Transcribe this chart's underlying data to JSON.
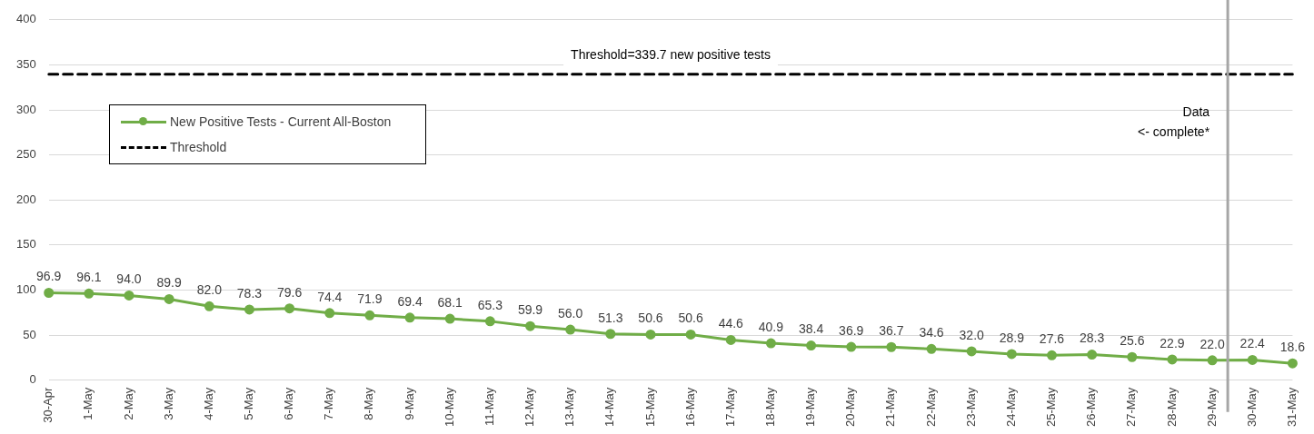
{
  "chart_data": {
    "type": "line",
    "categories": [
      "30-Apr",
      "1-May",
      "2-May",
      "3-May",
      "4-May",
      "5-May",
      "6-May",
      "7-May",
      "8-May",
      "9-May",
      "10-May",
      "11-May",
      "12-May",
      "13-May",
      "14-May",
      "15-May",
      "16-May",
      "17-May",
      "18-May",
      "19-May",
      "20-May",
      "21-May",
      "22-May",
      "23-May",
      "24-May",
      "25-May",
      "26-May",
      "27-May",
      "28-May",
      "29-May",
      "30-May",
      "31-May"
    ],
    "series": [
      {
        "name": "New Positive Tests - Current All-Boston",
        "color": "#70ad47",
        "marker": "circle",
        "line_style": "solid",
        "values": [
          96.9,
          96.1,
          94.0,
          89.9,
          82.0,
          78.3,
          79.6,
          74.4,
          71.9,
          69.4,
          68.1,
          65.3,
          59.9,
          56.0,
          51.3,
          50.6,
          50.6,
          44.6,
          40.9,
          38.4,
          36.9,
          36.7,
          34.6,
          32.0,
          28.9,
          27.6,
          28.3,
          25.6,
          22.9,
          22.0,
          22.4,
          18.6
        ],
        "value_labels": [
          "96.9",
          "96.1",
          "94.0",
          "89.9",
          "82.0",
          "78.3",
          "79.6",
          "74.4",
          "71.9",
          "69.4",
          "68.1",
          "65.3",
          "59.9",
          "56.0",
          "51.3",
          "50.6",
          "50.6",
          "44.6",
          "40.9",
          "38.4",
          "36.9",
          "36.7",
          "34.6",
          "32.0",
          "28.9",
          "27.6",
          "28.3",
          "25.6",
          "22.9",
          "22.0",
          "22.4",
          "18.6"
        ]
      },
      {
        "name": "Threshold",
        "color": "#000000",
        "marker": "none",
        "line_style": "dashed",
        "values": [
          339.7,
          339.7,
          339.7,
          339.7,
          339.7,
          339.7,
          339.7,
          339.7,
          339.7,
          339.7,
          339.7,
          339.7,
          339.7,
          339.7,
          339.7,
          339.7,
          339.7,
          339.7,
          339.7,
          339.7,
          339.7,
          339.7,
          339.7,
          339.7,
          339.7,
          339.7,
          339.7,
          339.7,
          339.7,
          339.7,
          339.7,
          339.7
        ]
      }
    ],
    "ylim": [
      0,
      400
    ],
    "yticks": [
      0,
      50,
      100,
      150,
      200,
      250,
      300,
      350,
      400
    ],
    "grid": "y",
    "legend": "top left",
    "ref_lines": [
      {
        "axis": "x",
        "value": "29-May",
        "label": "Data\n<- complete*",
        "color": "#a6a6a6"
      }
    ],
    "annotations": [
      {
        "text": "Threshold=339.7 new positive tests",
        "y": 339.7
      }
    ]
  }
}
